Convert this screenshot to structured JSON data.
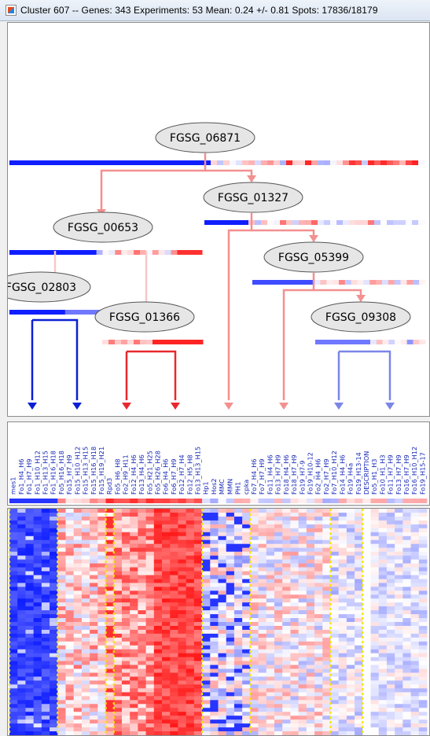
{
  "window": {
    "title": "Cluster 607 -- Genes: 343 Experiments: 53 Mean: 0.24 +/- 0.81 Spots: 17836/18179",
    "icon": "java-app-icon"
  },
  "tree": {
    "nodes": [
      {
        "id": "FGSG_06871",
        "label": "FGSG_06871"
      },
      {
        "id": "FGSG_01327",
        "label": "FGSG_01327"
      },
      {
        "id": "FGSG_00653",
        "label": "FGSG_00653"
      },
      {
        "id": "FGSG_05399",
        "label": "FGSG_05399"
      },
      {
        "id": "FGSG_02803",
        "label": "FGSG_02803"
      },
      {
        "id": "FGSG_01366",
        "label": "FGSG_01366"
      },
      {
        "id": "FGSG_09308",
        "label": "FGSG_09308"
      }
    ],
    "colors": {
      "strong_blue": "#0a1fd6",
      "light_blue": "#7b86e8",
      "strong_red": "#e8282e",
      "light_red": "#f39090"
    }
  },
  "experiments": [
    "mes1",
    "Fo1_H4_H6",
    "Fo1_H7_H9",
    "Fo1_H10_H12",
    "Fo1_H13_H15",
    "Fo1_H16_H18",
    "Fo5_H16_H18",
    "Fo15_H7_H9",
    "Fo15_H10_H12",
    "Fo15_H13_H15",
    "Fo15_H16_H18",
    "Fo15_H19_H21",
    "Rpd3",
    "Fo5_H6_H8",
    "Fo2_H9_H11",
    "Fo12_H4_H6",
    "Fo13_H4_H6",
    "Fo5_H21_H25",
    "Fo5_H26_H28",
    "Fo6_H4_H6",
    "Fo6_H7_H9",
    "Fo12_H7_H4",
    "Fo12_H5_H8",
    "Fo13_H13_H15",
    "Hp1",
    "Hos2",
    "MMC",
    "MMN",
    "PH1",
    "cpka",
    "Fo7_H4_H6",
    "Fo7_H7_H9",
    "Fo11_H4_H6",
    "Fo13_H7_H9",
    "Fo18_H4_H6",
    "Fo18_H7_H9",
    "Fo19_H7-9",
    "Fo19_H10-12",
    "Fo2_H4_H6",
    "Fo2_H7_H9",
    "Fo7_H10_H12",
    "Fo14_H4_H6",
    "Fo19_H4a",
    "Fo19_H13-14",
    "DESCRIPTION",
    "Fo5_H1_H3",
    "Fo10_H1_H3",
    "Fo11_H7_H9",
    "Fo13_H7_H9",
    "Fo16_H7_H9",
    "Fo16_H10_H12",
    "Fo19_H15-17"
  ]
}
